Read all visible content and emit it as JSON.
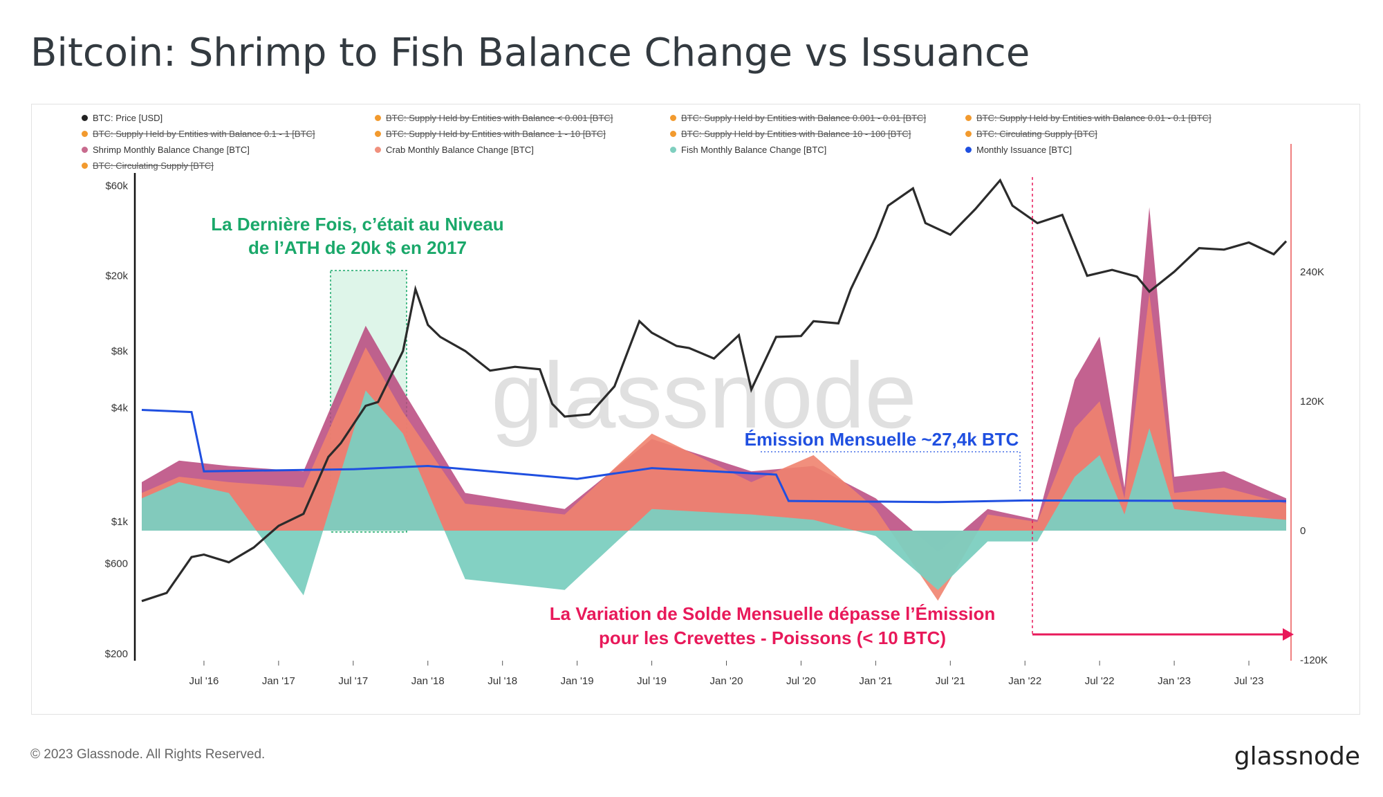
{
  "title": "Bitcoin: Shrimp to Fish Balance Change vs Issuance",
  "footer": {
    "copyright": "© 2023 Glassnode. All Rights Reserved.",
    "logo": "glassnode"
  },
  "legend": [
    {
      "label": "BTC: Price [USD]",
      "color": "#222222",
      "struck": false
    },
    {
      "label": "BTC: Supply Held by Entities with Balance < 0.001 [BTC]",
      "color": "#f29a2e",
      "struck": true
    },
    {
      "label": "BTC: Supply Held by Entities with Balance 0.001 - 0.01 [BTC]",
      "color": "#f29a2e",
      "struck": true
    },
    {
      "label": "BTC: Supply Held by Entities with Balance 0.01 - 0.1 [BTC]",
      "color": "#f29a2e",
      "struck": true
    },
    {
      "label": "BTC: Supply Held by Entities with Balance 0.1 - 1 [BTC]",
      "color": "#f29a2e",
      "struck": true
    },
    {
      "label": "BTC: Supply Held by Entities with Balance 1 - 10 [BTC]",
      "color": "#f29a2e",
      "struck": true
    },
    {
      "label": "BTC: Supply Held by Entities with Balance 10 - 100 [BTC]",
      "color": "#f29a2e",
      "struck": true
    },
    {
      "label": "BTC: Circulating Supply [BTC]",
      "color": "#f29a2e",
      "struck": true
    },
    {
      "label": "Shrimp Monthly Balance Change [BTC]",
      "color": "#c86b8e",
      "struck": false
    },
    {
      "label": "Crab Monthly Balance Change [BTC]",
      "color": "#f0907d",
      "struck": false
    },
    {
      "label": "Fish Monthly Balance Change [BTC]",
      "color": "#7fcfbf",
      "struck": false
    },
    {
      "label": "Monthly Issuance [BTC]",
      "color": "#1f4fe0",
      "struck": false
    },
    {
      "label": "BTC: Circulating Supply [BTC]",
      "color": "#f29a2e",
      "struck": true
    }
  ],
  "watermark": "glassnode",
  "annotations": {
    "ath_line1": "La Dernière Fois, c’était au Niveau",
    "ath_line2": "de l’ATH de 20k $ en 2017",
    "issuance": "Émission Mensuelle ~27,4k BTC",
    "variation_line1": "La Variation de Solde Mensuelle dépasse l’Émission",
    "variation_line2": "pour les Crevettes - Poissons (< 10 BTC)"
  },
  "colors": {
    "ath_text": "#1aa86a",
    "issuance_text": "#1f4fe0",
    "variation_text": "#e8195a",
    "price": "#2b2b2b",
    "shrimp": "#b8467c",
    "crab": "#f0836f",
    "fish": "#7ccfc0",
    "issuance": "#1f4fe0",
    "right_axis_line": "#f08080"
  },
  "chart_data": {
    "type": "area",
    "x_tick_labels": [
      "Jul '16",
      "Jan '17",
      "Jul '17",
      "Jan '18",
      "Jul '18",
      "Jan '19",
      "Jul '19",
      "Jan '20",
      "Jul '20",
      "Jan '21",
      "Jul '21",
      "Jan '22",
      "Jul '22",
      "Jan '23",
      "Jul '23"
    ],
    "left_axis": {
      "scale": "log",
      "ticks": [
        "$200",
        "$600",
        "$1k",
        "$4k",
        "$8k",
        "$20k",
        "$60k"
      ],
      "ylim": [
        200,
        70000
      ]
    },
    "right_axis": {
      "ticks": [
        "-120K",
        "0",
        "120K",
        "240K"
      ],
      "ylim": [
        -120000,
        360000
      ]
    },
    "series": [
      {
        "name": "BTC: Price [USD]",
        "axis": "left",
        "x": [
          "2016-02",
          "2016-04",
          "2016-06",
          "2016-07",
          "2016-09",
          "2016-11",
          "2017-01",
          "2017-03",
          "2017-05",
          "2017-06",
          "2017-08",
          "2017-09",
          "2017-11",
          "2017-12",
          "2018-01",
          "2018-02",
          "2018-04",
          "2018-06",
          "2018-08",
          "2018-10",
          "2018-11",
          "2018-12",
          "2019-02",
          "2019-04",
          "2019-06",
          "2019-07",
          "2019-09",
          "2019-10",
          "2019-12",
          "2020-02",
          "2020-03",
          "2020-05",
          "2020-07",
          "2020-08",
          "2020-10",
          "2020-11",
          "2021-01",
          "2021-02",
          "2021-04",
          "2021-05",
          "2021-07",
          "2021-09",
          "2021-11",
          "2021-12",
          "2022-02",
          "2022-04",
          "2022-06",
          "2022-08",
          "2022-10",
          "2022-11",
          "2023-01",
          "2023-03",
          "2023-05",
          "2023-07",
          "2023-09",
          "2023-10"
        ],
        "values": [
          380,
          420,
          650,
          670,
          610,
          730,
          950,
          1100,
          2200,
          2600,
          4100,
          4300,
          8000,
          17000,
          11000,
          9500,
          8000,
          6300,
          6600,
          6400,
          4200,
          3600,
          3700,
          5200,
          11500,
          10000,
          8500,
          8300,
          7300,
          9700,
          5000,
          9500,
          9600,
          11500,
          11200,
          17000,
          32000,
          47000,
          58000,
          38000,
          33000,
          45000,
          64000,
          47000,
          38000,
          42000,
          20000,
          21500,
          19800,
          16500,
          21000,
          28000,
          27500,
          30000,
          26000,
          30500
        ]
      },
      {
        "name": "Monthly Issuance [BTC]",
        "axis": "right",
        "x": [
          "2016-02",
          "2016-06",
          "2016-07",
          "2017-07",
          "2018-01",
          "2019-01",
          "2019-07",
          "2020-05",
          "2020-06",
          "2021-06",
          "2022-01",
          "2023-10"
        ],
        "values": [
          112000,
          110000,
          55000,
          57000,
          60000,
          48000,
          58000,
          52000,
          27500,
          26500,
          28000,
          27400
        ]
      },
      {
        "name": "Shrimp Monthly Balance Change [BTC]",
        "axis": "right",
        "x": [
          "2016-02",
          "2016-05",
          "2016-09",
          "2017-03",
          "2017-08",
          "2017-11",
          "2018-04",
          "2018-12",
          "2019-07",
          "2020-03",
          "2020-08",
          "2021-01",
          "2021-06",
          "2021-10",
          "2022-02",
          "2022-05",
          "2022-07",
          "2022-09",
          "2022-11",
          "2023-01",
          "2023-05",
          "2023-10"
        ],
        "values": [
          45000,
          65000,
          60000,
          55000,
          190000,
          130000,
          35000,
          20000,
          85000,
          55000,
          60000,
          30000,
          -20000,
          20000,
          10000,
          140000,
          180000,
          40000,
          300000,
          50000,
          55000,
          30000
        ]
      },
      {
        "name": "Crab Monthly Balance Change [BTC]",
        "axis": "right",
        "x": [
          "2016-02",
          "2016-05",
          "2016-09",
          "2017-03",
          "2017-08",
          "2017-11",
          "2018-04",
          "2018-12",
          "2019-07",
          "2020-03",
          "2020-08",
          "2021-01",
          "2021-06",
          "2021-10",
          "2022-02",
          "2022-05",
          "2022-07",
          "2022-09",
          "2022-11",
          "2023-01",
          "2023-05",
          "2023-10"
        ],
        "values": [
          35000,
          50000,
          45000,
          40000,
          170000,
          110000,
          25000,
          15000,
          90000,
          45000,
          70000,
          20000,
          -65000,
          15000,
          8000,
          95000,
          120000,
          30000,
          220000,
          35000,
          40000,
          25000
        ]
      },
      {
        "name": "Fish Monthly Balance Change [BTC]",
        "axis": "right",
        "x": [
          "2016-02",
          "2016-05",
          "2016-09",
          "2017-03",
          "2017-08",
          "2017-11",
          "2018-04",
          "2018-12",
          "2019-07",
          "2020-03",
          "2020-08",
          "2021-01",
          "2021-06",
          "2021-10",
          "2022-02",
          "2022-05",
          "2022-07",
          "2022-09",
          "2022-11",
          "2023-01",
          "2023-05",
          "2023-10"
        ],
        "values": [
          30000,
          45000,
          35000,
          -60000,
          130000,
          90000,
          -45000,
          -55000,
          20000,
          15000,
          10000,
          -5000,
          -55000,
          -10000,
          -10000,
          50000,
          70000,
          15000,
          95000,
          20000,
          15000,
          10000
        ]
      }
    ],
    "highlight_regions": [
      {
        "from": "2017-07",
        "to": "2017-12",
        "color": "#d3f2e2"
      }
    ],
    "markers": [
      {
        "type": "vline",
        "x": "2022-04",
        "color": "#e8195a"
      }
    ]
  }
}
